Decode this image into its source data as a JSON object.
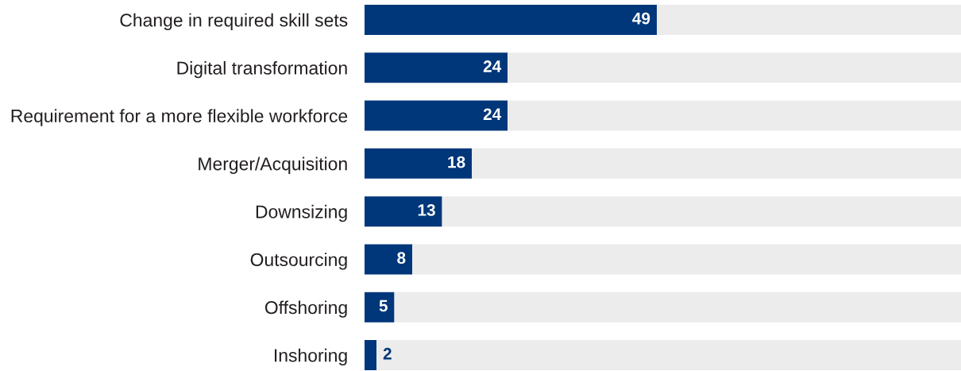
{
  "chart_data": {
    "type": "bar",
    "orientation": "horizontal",
    "stacked": true,
    "categories": [
      "Change in required skill sets",
      "Digital transformation",
      "Requirement for a more flexible workforce",
      "Merger/Acquisition",
      "Downsizing",
      "Outsourcing",
      "Offshoring",
      "Inshoring"
    ],
    "series": [
      {
        "color": "#00367a",
        "values": [
          49,
          24,
          24,
          18,
          13,
          8,
          5,
          2
        ],
        "value_labels": [
          "49",
          "24",
          "24",
          "18",
          "13",
          "8",
          "5",
          "2"
        ]
      },
      {
        "color": "#ebeceb",
        "values": [
          51,
          76,
          76,
          82,
          87,
          92,
          95,
          98
        ]
      }
    ],
    "xlim": [
      0,
      100
    ],
    "tick_labels": "y",
    "grid": false
  }
}
